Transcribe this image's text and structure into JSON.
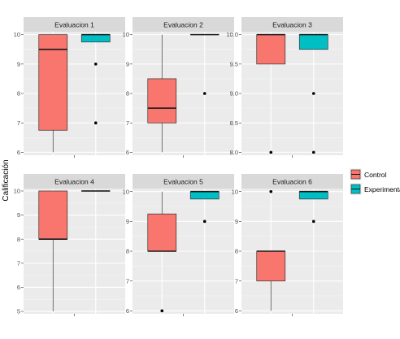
{
  "chart_data": {
    "type": "boxplot",
    "ylabel": "Calificación",
    "colors": {
      "Control": "#F8766D",
      "Experimental": "#00BFC4"
    },
    "legend": {
      "position": "right",
      "entries": [
        "Control",
        "Experimental"
      ]
    },
    "grid": true,
    "panels": [
      {
        "title": "Evaluacion 1",
        "ylim": [
          5.9,
          10.1
        ],
        "ticks": [
          6,
          7,
          8,
          9,
          10
        ],
        "tick_labels": [
          "6",
          "7",
          "8",
          "9",
          "10"
        ],
        "groups": [
          {
            "name": "Control",
            "min": 6,
            "q1": 6.75,
            "median": 9.5,
            "q3": 10,
            "max": 10,
            "outliers": []
          },
          {
            "name": "Experimental",
            "min": 9.75,
            "q1": 9.75,
            "median": 10,
            "q3": 10,
            "max": 10,
            "outliers": [
              9,
              7
            ]
          }
        ]
      },
      {
        "title": "Evaluacion 2",
        "ylim": [
          5.9,
          10.1
        ],
        "ticks": [
          6,
          7,
          8,
          9,
          10
        ],
        "tick_labels": [
          "6",
          "7",
          "8",
          "9",
          "10"
        ],
        "groups": [
          {
            "name": "Control",
            "min": 6,
            "q1": 7,
            "median": 7.5,
            "q3": 8.5,
            "max": 10,
            "outliers": []
          },
          {
            "name": "Experimental",
            "min": 10,
            "q1": 10,
            "median": 10,
            "q3": 10,
            "max": 10,
            "outliers": [
              8
            ]
          }
        ]
      },
      {
        "title": "Evaluacion 3",
        "ylim": [
          7.95,
          10.05
        ],
        "ticks": [
          8,
          8.5,
          9,
          9.5,
          10
        ],
        "tick_labels": [
          "8.0",
          "8.5",
          "9.0",
          "9.5",
          "10.0"
        ],
        "groups": [
          {
            "name": "Control",
            "min": 9.5,
            "q1": 9.5,
            "median": 10,
            "q3": 10,
            "max": 10,
            "outliers": [
              8
            ]
          },
          {
            "name": "Experimental",
            "min": 9.75,
            "q1": 9.75,
            "median": 10,
            "q3": 10,
            "max": 10,
            "outliers": [
              9,
              8
            ]
          }
        ]
      },
      {
        "title": "Evaluacion 4",
        "ylim": [
          4.9,
          10.1
        ],
        "ticks": [
          5,
          6,
          7,
          8,
          9,
          10
        ],
        "tick_labels": [
          "5",
          "6",
          "7",
          "8",
          "9",
          "10"
        ],
        "groups": [
          {
            "name": "Control",
            "min": 5,
            "q1": 8,
            "median": 8,
            "q3": 10,
            "max": 10,
            "outliers": []
          },
          {
            "name": "Experimental",
            "min": 10,
            "q1": 10,
            "median": 10,
            "q3": 10,
            "max": 10,
            "outliers": []
          }
        ]
      },
      {
        "title": "Evaluacion 5",
        "ylim": [
          5.9,
          10.1
        ],
        "ticks": [
          6,
          7,
          8,
          9,
          10
        ],
        "tick_labels": [
          "6",
          "7",
          "8",
          "9",
          "10"
        ],
        "groups": [
          {
            "name": "Control",
            "min": 8,
            "q1": 8,
            "median": 8,
            "q3": 9.25,
            "max": 10,
            "outliers": [
              6
            ]
          },
          {
            "name": "Experimental",
            "min": 9.75,
            "q1": 9.75,
            "median": 10,
            "q3": 10,
            "max": 10,
            "outliers": [
              9
            ]
          }
        ]
      },
      {
        "title": "Evaluacion 6",
        "ylim": [
          5.9,
          10.1
        ],
        "ticks": [
          6,
          7,
          8,
          9,
          10
        ],
        "tick_labels": [
          "6",
          "7",
          "8",
          "9",
          "10"
        ],
        "groups": [
          {
            "name": "Control",
            "min": 6,
            "q1": 7,
            "median": 8,
            "q3": 8,
            "max": 8,
            "outliers": [
              10
            ]
          },
          {
            "name": "Experimental",
            "min": 9.75,
            "q1": 9.75,
            "median": 10,
            "q3": 10,
            "max": 10,
            "outliers": [
              9
            ]
          }
        ]
      }
    ]
  }
}
